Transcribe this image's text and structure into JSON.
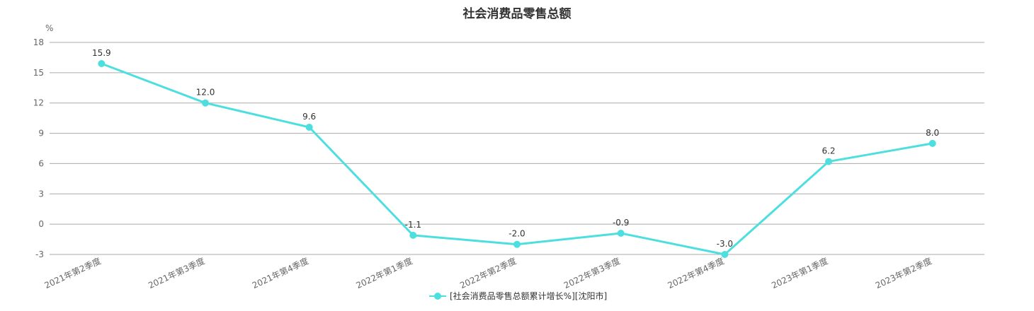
{
  "chart_data": {
    "type": "line",
    "title": "社会消费品零售总额",
    "ylabel": "%",
    "xlabel": "",
    "ylim": [
      -3,
      18
    ],
    "yticks": [
      18,
      15,
      12,
      9,
      6,
      3,
      0,
      -3
    ],
    "grid": true,
    "legend_position": "bottom-center",
    "categories": [
      "2021年第2季度",
      "2021年第3季度",
      "2021年第4季度",
      "2022年第1季度",
      "2022年第2季度",
      "2022年第3季度",
      "2022年第4季度",
      "2023年第1季度",
      "2023年第2季度"
    ],
    "series": [
      {
        "name": "[社会消费品零售总额累计增长%][沈阳市]",
        "values": [
          15.9,
          12.0,
          9.6,
          -1.1,
          -2.0,
          -0.9,
          -3.0,
          6.2,
          8.0
        ],
        "labels": [
          "15.9",
          "12.0",
          "9.6",
          "-1.1",
          "-2.0",
          "-0.9",
          "-3.0",
          "6.2",
          "8.0"
        ],
        "color": "#4ddfe0"
      }
    ]
  }
}
